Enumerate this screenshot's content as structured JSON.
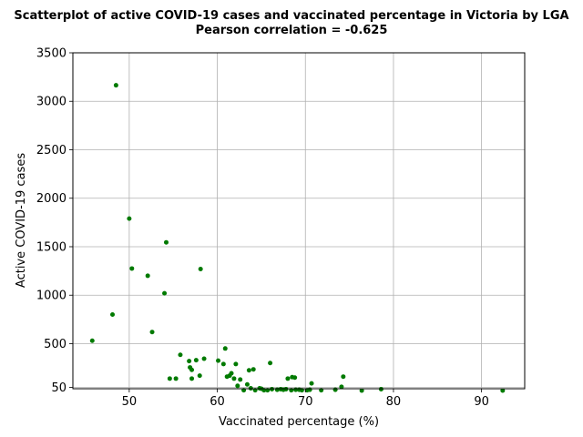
{
  "chart_data": {
    "type": "scatter",
    "title": "Scatterplot of active COVID-19 cases and vaccinated percentage in Victoria by LGA",
    "subtitle": "Pearson correlation = -0.625",
    "xlabel": "Vaccinated percentage (%)",
    "ylabel": "Active COVID-19 cases",
    "xlim": [
      43.6,
      94.9
    ],
    "ylim": [
      35,
      3500
    ],
    "xticks": [
      50,
      60,
      70,
      80,
      90
    ],
    "yticks": [
      50,
      500,
      1000,
      1500,
      2000,
      2500,
      3000,
      3500
    ],
    "grid": true,
    "marker_color": "#007a00",
    "series": [
      {
        "points": [
          {
            "x": 45.8,
            "y": 530
          },
          {
            "x": 48.1,
            "y": 800
          },
          {
            "x": 48.5,
            "y": 3165
          },
          {
            "x": 50.0,
            "y": 1790
          },
          {
            "x": 50.3,
            "y": 1275
          },
          {
            "x": 52.1,
            "y": 1200
          },
          {
            "x": 52.6,
            "y": 620
          },
          {
            "x": 54.0,
            "y": 1020
          },
          {
            "x": 54.2,
            "y": 1545
          },
          {
            "x": 54.6,
            "y": 140
          },
          {
            "x": 55.3,
            "y": 140
          },
          {
            "x": 55.8,
            "y": 385
          },
          {
            "x": 56.8,
            "y": 320
          },
          {
            "x": 56.9,
            "y": 255
          },
          {
            "x": 57.1,
            "y": 230
          },
          {
            "x": 57.1,
            "y": 140
          },
          {
            "x": 57.6,
            "y": 330
          },
          {
            "x": 58.0,
            "y": 170
          },
          {
            "x": 58.1,
            "y": 1270
          },
          {
            "x": 58.5,
            "y": 345
          },
          {
            "x": 60.1,
            "y": 325
          },
          {
            "x": 60.7,
            "y": 290
          },
          {
            "x": 60.9,
            "y": 450
          },
          {
            "x": 61.1,
            "y": 160
          },
          {
            "x": 61.4,
            "y": 170
          },
          {
            "x": 61.6,
            "y": 195
          },
          {
            "x": 61.9,
            "y": 140
          },
          {
            "x": 62.1,
            "y": 290
          },
          {
            "x": 62.3,
            "y": 65
          },
          {
            "x": 62.6,
            "y": 130
          },
          {
            "x": 63.0,
            "y": 20
          },
          {
            "x": 63.4,
            "y": 80
          },
          {
            "x": 63.6,
            "y": 225
          },
          {
            "x": 63.8,
            "y": 40
          },
          {
            "x": 64.1,
            "y": 235
          },
          {
            "x": 64.3,
            "y": 20
          },
          {
            "x": 64.8,
            "y": 40
          },
          {
            "x": 65.0,
            "y": 35
          },
          {
            "x": 65.3,
            "y": 20
          },
          {
            "x": 65.7,
            "y": 20
          },
          {
            "x": 66.0,
            "y": 300
          },
          {
            "x": 66.2,
            "y": 30
          },
          {
            "x": 66.8,
            "y": 25
          },
          {
            "x": 67.2,
            "y": 30
          },
          {
            "x": 67.5,
            "y": 25
          },
          {
            "x": 67.8,
            "y": 30
          },
          {
            "x": 68.0,
            "y": 140
          },
          {
            "x": 68.4,
            "y": 20
          },
          {
            "x": 68.5,
            "y": 155
          },
          {
            "x": 68.8,
            "y": 150
          },
          {
            "x": 68.9,
            "y": 25
          },
          {
            "x": 69.3,
            "y": 25
          },
          {
            "x": 69.6,
            "y": 20
          },
          {
            "x": 70.2,
            "y": 20
          },
          {
            "x": 70.5,
            "y": 25
          },
          {
            "x": 70.7,
            "y": 90
          },
          {
            "x": 71.8,
            "y": 20
          },
          {
            "x": 73.4,
            "y": 25
          },
          {
            "x": 74.1,
            "y": 55
          },
          {
            "x": 74.3,
            "y": 160
          },
          {
            "x": 76.4,
            "y": 15
          },
          {
            "x": 78.6,
            "y": 30
          },
          {
            "x": 92.4,
            "y": 15
          }
        ]
      }
    ]
  }
}
